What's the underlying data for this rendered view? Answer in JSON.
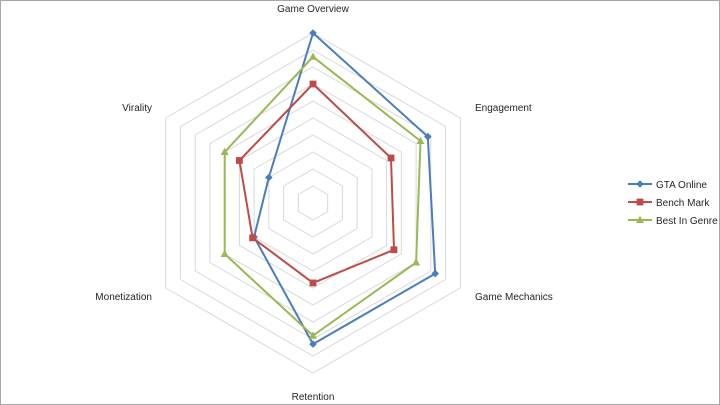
{
  "chart_data": {
    "type": "radar",
    "axes": [
      "Game Overview",
      "Engagement",
      "Game Mechanics",
      "Retention",
      "Monetization",
      "Virality"
    ],
    "rmax": 10,
    "rings": 10,
    "grid": true,
    "legend": "right",
    "series": [
      {
        "name": "GTA Online",
        "color": "#4a7ebb",
        "marker": "diamond",
        "values": [
          10,
          7.8,
          8.3,
          8.3,
          4.0,
          3.0
        ]
      },
      {
        "name": "Bench Mark",
        "color": "#be4b48",
        "marker": "square",
        "values": [
          7.0,
          5.3,
          5.5,
          4.7,
          4.1,
          5.0
        ]
      },
      {
        "name": "Best In Genre",
        "color": "#98b954",
        "marker": "triangle",
        "values": [
          8.6,
          7.3,
          7.0,
          7.8,
          6.0,
          6.0
        ]
      }
    ]
  }
}
